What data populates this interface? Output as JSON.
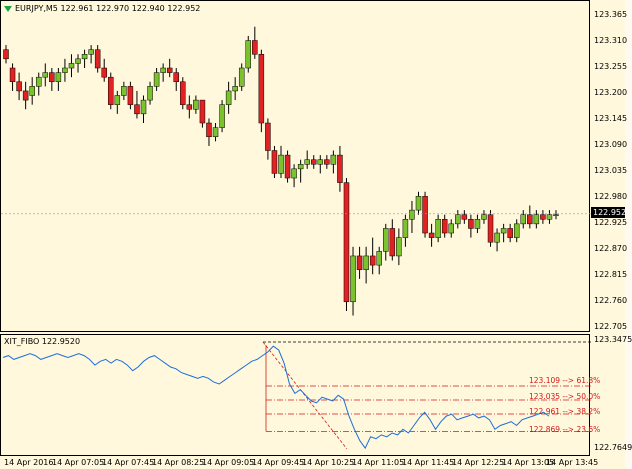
{
  "main_chart": {
    "symbol_header": "EURJPY,M5  122.961 122.970 122.940 122.952",
    "current_price": "122.952",
    "price_labels": [
      "123.365",
      "123.310",
      "123.255",
      "123.200",
      "123.145",
      "123.090",
      "123.035",
      "122.980",
      "122.925",
      "122.870",
      "122.815",
      "122.760",
      "122.705"
    ],
    "colors": {
      "bull": "#7cc22f",
      "bear": "#e02222",
      "background": "#fff8dc"
    }
  },
  "indicator": {
    "header": "XIT_FIBO 122.9520",
    "top_value": "123.3475",
    "bottom_value": "122.7649",
    "fib_levels": [
      "123.109 --> 61.8%",
      "123.035 --> 50.0%",
      "122.961 --> 38.2%",
      "122.869 --> 23.6%"
    ],
    "colors": {
      "line": "#1e6fd8",
      "fib": "#d11a1a"
    }
  },
  "time_axis": {
    "labels": [
      "14 Apr 2016",
      "14 Apr 07:05",
      "14 Apr 07:45",
      "14 Apr 08:25",
      "14 Apr 09:05",
      "14 Apr 09:45",
      "14 Apr 10:25",
      "14 Apr 11:05",
      "14 Apr 11:45",
      "14 Apr 12:25",
      "14 Apr 13:05",
      "14 Apr 13:45"
    ]
  },
  "chart_data": [
    {
      "type": "candlestick",
      "title": "EURJPY,M5",
      "ylim": [
        122.705,
        123.39
      ],
      "ohlc": [
        [
          123.31,
          123.32,
          123.28,
          123.29
        ],
        [
          123.27,
          123.28,
          123.22,
          123.24
        ],
        [
          123.24,
          123.26,
          123.2,
          123.22
        ],
        [
          123.22,
          123.24,
          123.18,
          123.2
        ],
        [
          123.21,
          123.25,
          123.19,
          123.23
        ],
        [
          123.23,
          123.26,
          123.21,
          123.25
        ],
        [
          123.25,
          123.28,
          123.23,
          123.26
        ],
        [
          123.26,
          123.27,
          123.22,
          123.24
        ],
        [
          123.24,
          123.27,
          123.22,
          123.26
        ],
        [
          123.26,
          123.29,
          123.24,
          123.27
        ],
        [
          123.27,
          123.3,
          123.25,
          123.28
        ],
        [
          123.28,
          123.3,
          123.26,
          123.29
        ],
        [
          123.29,
          123.31,
          123.27,
          123.3
        ],
        [
          123.3,
          123.32,
          123.28,
          123.31
        ],
        [
          123.31,
          123.32,
          123.26,
          123.27
        ],
        [
          123.27,
          123.29,
          123.24,
          123.25
        ],
        [
          123.25,
          123.26,
          123.18,
          123.19
        ],
        [
          123.19,
          123.22,
          123.17,
          123.21
        ],
        [
          123.21,
          123.24,
          123.2,
          123.23
        ],
        [
          123.23,
          123.24,
          123.18,
          123.19
        ],
        [
          123.19,
          123.22,
          123.16,
          123.17
        ],
        [
          123.17,
          123.21,
          123.15,
          123.2
        ],
        [
          123.2,
          123.24,
          123.19,
          123.23
        ],
        [
          123.23,
          123.27,
          123.22,
          123.26
        ],
        [
          123.26,
          123.28,
          123.24,
          123.27
        ],
        [
          123.27,
          123.29,
          123.25,
          123.26
        ],
        [
          123.26,
          123.27,
          123.22,
          123.24
        ],
        [
          123.24,
          123.25,
          123.18,
          123.19
        ],
        [
          123.19,
          123.21,
          123.16,
          123.18
        ],
        [
          123.18,
          123.21,
          123.17,
          123.2
        ],
        [
          123.2,
          123.2,
          123.14,
          123.15
        ],
        [
          123.15,
          123.16,
          123.1,
          123.12
        ],
        [
          123.12,
          123.15,
          123.11,
          123.14
        ],
        [
          123.14,
          123.2,
          123.13,
          123.19
        ],
        [
          123.19,
          123.24,
          123.17,
          123.22
        ],
        [
          123.22,
          123.25,
          123.2,
          123.23
        ],
        [
          123.23,
          123.28,
          123.22,
          123.27
        ],
        [
          123.27,
          123.34,
          123.26,
          123.33
        ],
        [
          123.33,
          123.36,
          123.29,
          123.3
        ],
        [
          123.3,
          123.31,
          123.13,
          123.15
        ],
        [
          123.15,
          123.16,
          123.07,
          123.09
        ],
        [
          123.09,
          123.1,
          123.03,
          123.04
        ],
        [
          123.04,
          123.1,
          123.03,
          123.08
        ],
        [
          123.08,
          123.09,
          123.02,
          123.03
        ],
        [
          123.03,
          123.06,
          123.01,
          123.05
        ],
        [
          123.05,
          123.07,
          123.02,
          123.06
        ],
        [
          123.06,
          123.09,
          123.05,
          123.07
        ],
        [
          123.07,
          123.08,
          123.05,
          123.06
        ],
        [
          123.06,
          123.08,
          123.04,
          123.07
        ],
        [
          123.07,
          123.08,
          123.05,
          123.06
        ],
        [
          123.06,
          123.09,
          123.04,
          123.08
        ],
        [
          123.08,
          123.1,
          123.0,
          123.02
        ],
        [
          123.02,
          123.03,
          122.74,
          122.76
        ],
        [
          122.76,
          122.88,
          122.73,
          122.86
        ],
        [
          122.86,
          122.88,
          122.81,
          122.83
        ],
        [
          122.83,
          122.88,
          122.8,
          122.86
        ],
        [
          122.86,
          122.9,
          122.82,
          122.84
        ],
        [
          122.84,
          122.88,
          122.82,
          122.87
        ],
        [
          122.87,
          122.93,
          122.85,
          122.92
        ],
        [
          122.92,
          122.94,
          122.85,
          122.86
        ],
        [
          122.86,
          122.92,
          122.84,
          122.9
        ],
        [
          122.9,
          122.95,
          122.88,
          122.94
        ],
        [
          122.94,
          122.98,
          122.91,
          122.96
        ],
        [
          122.96,
          123.0,
          122.95,
          122.99
        ],
        [
          122.99,
          123.0,
          122.9,
          122.91
        ],
        [
          122.91,
          122.93,
          122.88,
          122.9
        ],
        [
          122.9,
          122.95,
          122.89,
          122.94
        ],
        [
          122.94,
          122.95,
          122.9,
          122.91
        ],
        [
          122.91,
          122.94,
          122.9,
          122.93
        ],
        [
          122.93,
          122.96,
          122.92,
          122.95
        ],
        [
          122.95,
          122.96,
          122.93,
          122.94
        ],
        [
          122.94,
          122.95,
          122.9,
          122.92
        ],
        [
          122.92,
          122.95,
          122.91,
          122.94
        ],
        [
          122.94,
          122.96,
          122.93,
          122.95
        ],
        [
          122.95,
          122.96,
          122.88,
          122.89
        ],
        [
          122.89,
          122.92,
          122.87,
          122.91
        ],
        [
          122.91,
          122.93,
          122.89,
          122.92
        ],
        [
          122.92,
          122.93,
          122.89,
          122.9
        ],
        [
          122.9,
          122.94,
          122.89,
          122.93
        ],
        [
          122.93,
          122.96,
          122.92,
          122.95
        ],
        [
          122.95,
          122.97,
          122.92,
          122.93
        ],
        [
          122.93,
          122.96,
          122.92,
          122.95
        ],
        [
          122.95,
          122.96,
          122.93,
          122.94
        ],
        [
          122.94,
          122.96,
          122.93,
          122.95
        ],
        [
          122.95,
          122.96,
          122.94,
          122.95
        ]
      ]
    },
    {
      "type": "line",
      "title": "XIT_FIBO 122.9520",
      "ylim": [
        122.7649,
        123.3475
      ],
      "values": [
        123.26,
        123.27,
        123.25,
        123.26,
        123.27,
        123.28,
        123.27,
        123.25,
        123.26,
        123.27,
        123.28,
        123.27,
        123.26,
        123.27,
        123.28,
        123.27,
        123.25,
        123.22,
        123.24,
        123.25,
        123.23,
        123.25,
        123.24,
        123.22,
        123.19,
        123.21,
        123.24,
        123.26,
        123.27,
        123.25,
        123.23,
        123.21,
        123.2,
        123.18,
        123.17,
        123.16,
        123.15,
        123.16,
        123.15,
        123.13,
        123.12,
        123.14,
        123.16,
        123.18,
        123.2,
        123.22,
        123.24,
        123.25,
        123.27,
        123.29,
        123.32,
        123.3,
        123.23,
        123.12,
        123.07,
        123.09,
        123.06,
        123.03,
        123.02,
        123.05,
        123.04,
        123.03,
        123.06,
        123.04,
        122.95,
        122.88,
        122.82,
        122.78,
        122.84,
        122.83,
        122.85,
        122.84,
        122.86,
        122.85,
        122.88,
        122.86,
        122.9,
        122.94,
        122.97,
        122.93,
        122.88,
        122.92,
        122.95,
        122.96,
        122.93,
        122.94,
        122.95,
        122.96,
        122.94,
        122.95,
        122.93,
        122.88,
        122.9,
        122.91,
        122.92,
        122.9,
        122.93,
        122.94,
        122.95,
        122.96,
        122.97,
        122.95
      ]
    }
  ]
}
